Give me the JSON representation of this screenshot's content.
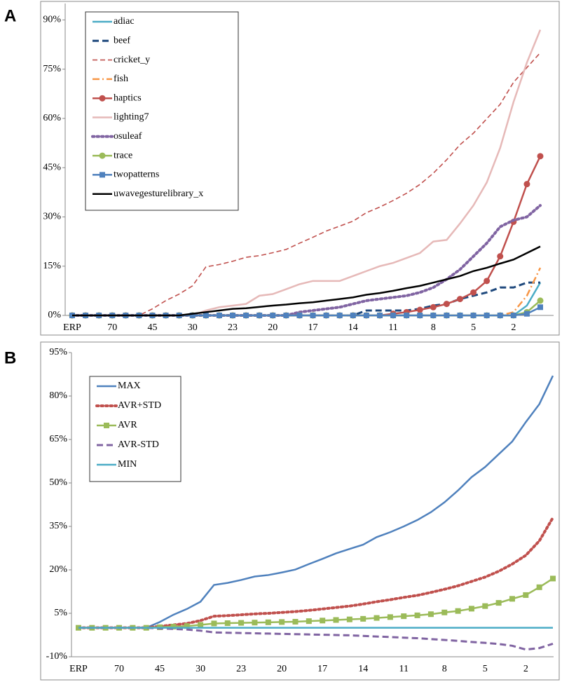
{
  "chart_data": [
    {
      "type": "line",
      "label": "A",
      "categories": [
        "ERP",
        null,
        null,
        "70",
        null,
        null,
        "45",
        null,
        null,
        "30",
        null,
        null,
        "23",
        null,
        null,
        "20",
        null,
        null,
        "17",
        null,
        null,
        "14",
        null,
        null,
        "11",
        null,
        null,
        "8",
        null,
        null,
        "5",
        null,
        null,
        "2",
        null,
        null
      ],
      "ylim": [
        0,
        95
      ],
      "yticks": [
        {
          "value": 0,
          "label": "0%"
        },
        {
          "value": 15,
          "label": "15%"
        },
        {
          "value": 30,
          "label": "30%"
        },
        {
          "value": 45,
          "label": "45%"
        },
        {
          "value": 60,
          "label": "60%"
        },
        {
          "value": 75,
          "label": "75%"
        },
        {
          "value": 90,
          "label": "90%"
        }
      ],
      "legend": "upper left",
      "series": [
        {
          "name": "adiac",
          "color": "#4bacc6",
          "style": "solid",
          "values": [
            0,
            0,
            0,
            0,
            0,
            0,
            0,
            0,
            0,
            0,
            0,
            0,
            0,
            0,
            0,
            0,
            0,
            0,
            0,
            0,
            0,
            0,
            0,
            0,
            0,
            0,
            0,
            0,
            0,
            0,
            0,
            0,
            0,
            0,
            3,
            10
          ]
        },
        {
          "name": "beef",
          "color": "#1f497d",
          "style": "dashed",
          "values": [
            0,
            0,
            0,
            0,
            0,
            0,
            0,
            0,
            0,
            0,
            0,
            0,
            0,
            0,
            0,
            0,
            0,
            0,
            0,
            0,
            0,
            0,
            1.5,
            1.5,
            1.5,
            1.5,
            2,
            3,
            3.5,
            5,
            6,
            7,
            8.5,
            8.5,
            10,
            10
          ]
        },
        {
          "name": "cricket_y",
          "color": "#c0504d",
          "style": "thin-dashed",
          "values": [
            0,
            0,
            0,
            0,
            0,
            0,
            2,
            4.5,
            6.5,
            9,
            14.8,
            15.5,
            16.5,
            17.7,
            18.2,
            19.1,
            20.1,
            22,
            23.8,
            25.7,
            27.2,
            28.7,
            31.3,
            33,
            35,
            37.2,
            39.9,
            43.3,
            47.4,
            52,
            55.5,
            59.9,
            64.3,
            71,
            75.5,
            80
          ]
        },
        {
          "name": "fish",
          "color": "#f79646",
          "style": "dashdot",
          "values": [
            0,
            0,
            0,
            0,
            0,
            0,
            0,
            0,
            0,
            0,
            0,
            0,
            0,
            0,
            0,
            0,
            0,
            0,
            0,
            0,
            0,
            0,
            0,
            0,
            0,
            0,
            0,
            0,
            0,
            0,
            0,
            0,
            0,
            1,
            6,
            14.5
          ]
        },
        {
          "name": "haptics",
          "color": "#c0504d",
          "style": "solid",
          "marker": "circle",
          "values": [
            0,
            0,
            0,
            0,
            0,
            0,
            0,
            0,
            0,
            0,
            0,
            0,
            0,
            0,
            0,
            0,
            0,
            0,
            0,
            0,
            0,
            0,
            0,
            0,
            0.5,
            1,
            1.7,
            2.5,
            3.5,
            5,
            7,
            10.5,
            18,
            28.5,
            40,
            48.5
          ]
        },
        {
          "name": "lighting7",
          "color": "#e6b9b8",
          "style": "solid",
          "values": [
            0,
            0,
            0,
            0,
            0,
            0,
            0,
            0,
            0,
            0,
            1.5,
            2.5,
            3,
            3.5,
            6,
            6.5,
            8,
            9.5,
            10.5,
            10.5,
            10.5,
            12,
            13.5,
            15,
            16,
            17.5,
            19,
            22.5,
            23,
            28,
            33.5,
            40.5,
            51,
            65,
            77,
            87
          ]
        },
        {
          "name": "osuleaf",
          "color": "#8064a2",
          "style": "dotted",
          "values": [
            0,
            0,
            0,
            0,
            0,
            0,
            0,
            0,
            0,
            0,
            0,
            0,
            0,
            0,
            0,
            0,
            0,
            1,
            1.5,
            2,
            2.5,
            3.5,
            4.5,
            5,
            5.5,
            6,
            7,
            8.5,
            11,
            14,
            18,
            22,
            27,
            29,
            30,
            33.5
          ]
        },
        {
          "name": "trace",
          "color": "#9bbb59",
          "style": "solid",
          "marker": "circle",
          "values": [
            0,
            0,
            0,
            0,
            0,
            0,
            0,
            0,
            0,
            0,
            0,
            0,
            0,
            0,
            0,
            0,
            0,
            0,
            0,
            0,
            0,
            0,
            0,
            0,
            0,
            0,
            0,
            0,
            0,
            0,
            0,
            0,
            0,
            0,
            1,
            4.5
          ]
        },
        {
          "name": "twopatterns",
          "color": "#4f81bd",
          "style": "solid",
          "marker": "square",
          "values": [
            0,
            0,
            0,
            0,
            0,
            0,
            0,
            0,
            0,
            0,
            0,
            0,
            0,
            0,
            0,
            0,
            0,
            0,
            0,
            0,
            0,
            0,
            0,
            0,
            0,
            0,
            0,
            0,
            0,
            0,
            0,
            0,
            0,
            0,
            0.5,
            2.5
          ]
        },
        {
          "name": "uwavegesturelibrary_x",
          "color": "#000000",
          "style": "solid",
          "values": [
            0,
            0,
            0,
            0,
            0,
            0,
            0,
            0,
            0,
            0.5,
            1,
            1.5,
            2,
            2.2,
            2.6,
            3,
            3.3,
            3.7,
            4,
            4.5,
            5,
            5.5,
            6.3,
            6.8,
            7.5,
            8.3,
            9,
            10,
            11,
            12,
            13.5,
            14.5,
            15.8,
            17,
            19,
            21
          ]
        }
      ]
    },
    {
      "type": "line",
      "label": "B",
      "categories": [
        "ERP",
        null,
        null,
        "70",
        null,
        null,
        "45",
        null,
        null,
        "30",
        null,
        null,
        "23",
        null,
        null,
        "20",
        null,
        null,
        "17",
        null,
        null,
        "14",
        null,
        null,
        "11",
        null,
        null,
        "8",
        null,
        null,
        "5",
        null,
        null,
        "2",
        null,
        null
      ],
      "ylim": [
        -10,
        95
      ],
      "yticks": [
        {
          "value": -10,
          "label": "-10%"
        },
        {
          "value": 5,
          "label": "5%"
        },
        {
          "value": 20,
          "label": "20%"
        },
        {
          "value": 35,
          "label": "35%"
        },
        {
          "value": 50,
          "label": "50%"
        },
        {
          "value": 65,
          "label": "65%"
        },
        {
          "value": 80,
          "label": "80%"
        },
        {
          "value": 95,
          "label": "95%"
        }
      ],
      "legend": "upper left",
      "series": [
        {
          "name": "MAX",
          "color": "#4f81bd",
          "style": "solid",
          "values": [
            0,
            0,
            0,
            0,
            0,
            0,
            2,
            4.5,
            6.5,
            9,
            14.8,
            15.5,
            16.5,
            17.7,
            18.2,
            19.1,
            20.1,
            22,
            23.8,
            25.7,
            27.2,
            28.7,
            31.3,
            33,
            35,
            37.2,
            39.9,
            43.3,
            47.4,
            52,
            55.5,
            59.9,
            64.3,
            71,
            77.2,
            87
          ]
        },
        {
          "name": "AVR+STD",
          "color": "#c0504d",
          "style": "dotted",
          "values": [
            0,
            0,
            0,
            0,
            0,
            0,
            0.5,
            1,
            1.5,
            2.5,
            4,
            4.2,
            4.5,
            4.8,
            5,
            5.3,
            5.6,
            6,
            6.5,
            7,
            7.5,
            8.2,
            9,
            9.7,
            10.5,
            11.2,
            12.2,
            13.3,
            14.5,
            16,
            17.5,
            19.5,
            22,
            25,
            30,
            38
          ]
        },
        {
          "name": "AVR",
          "color": "#9bbb59",
          "style": "solid",
          "marker": "square",
          "values": [
            0,
            0,
            0,
            0,
            0,
            0,
            0.2,
            0.4,
            0.6,
            1,
            1.5,
            1.6,
            1.7,
            1.8,
            1.9,
            2,
            2.1,
            2.3,
            2.5,
            2.7,
            2.9,
            3.1,
            3.4,
            3.7,
            4,
            4.3,
            4.7,
            5.3,
            5.8,
            6.6,
            7.5,
            8.6,
            10,
            11.3,
            14,
            17
          ]
        },
        {
          "name": "AVR-STD",
          "color": "#8064a2",
          "style": "dashed",
          "values": [
            0,
            0,
            0,
            0,
            0,
            0,
            -0.2,
            -0.4,
            -0.6,
            -1,
            -1.6,
            -1.7,
            -1.8,
            -1.9,
            -2,
            -2.1,
            -2.2,
            -2.3,
            -2.4,
            -2.5,
            -2.6,
            -2.8,
            -3,
            -3.2,
            -3.4,
            -3.6,
            -3.9,
            -4.2,
            -4.5,
            -4.9,
            -5.2,
            -5.6,
            -6.2,
            -7.5,
            -7,
            -5.5
          ]
        },
        {
          "name": "MIN",
          "color": "#4bacc6",
          "style": "solid",
          "values": [
            0,
            0,
            0,
            0,
            0,
            0,
            0,
            0,
            0,
            0,
            0,
            0,
            0,
            0,
            0,
            0,
            0,
            0,
            0,
            0,
            0,
            0,
            0,
            0,
            0,
            0,
            0,
            0,
            0,
            0,
            0,
            0,
            0,
            0,
            0,
            0
          ]
        }
      ]
    }
  ]
}
